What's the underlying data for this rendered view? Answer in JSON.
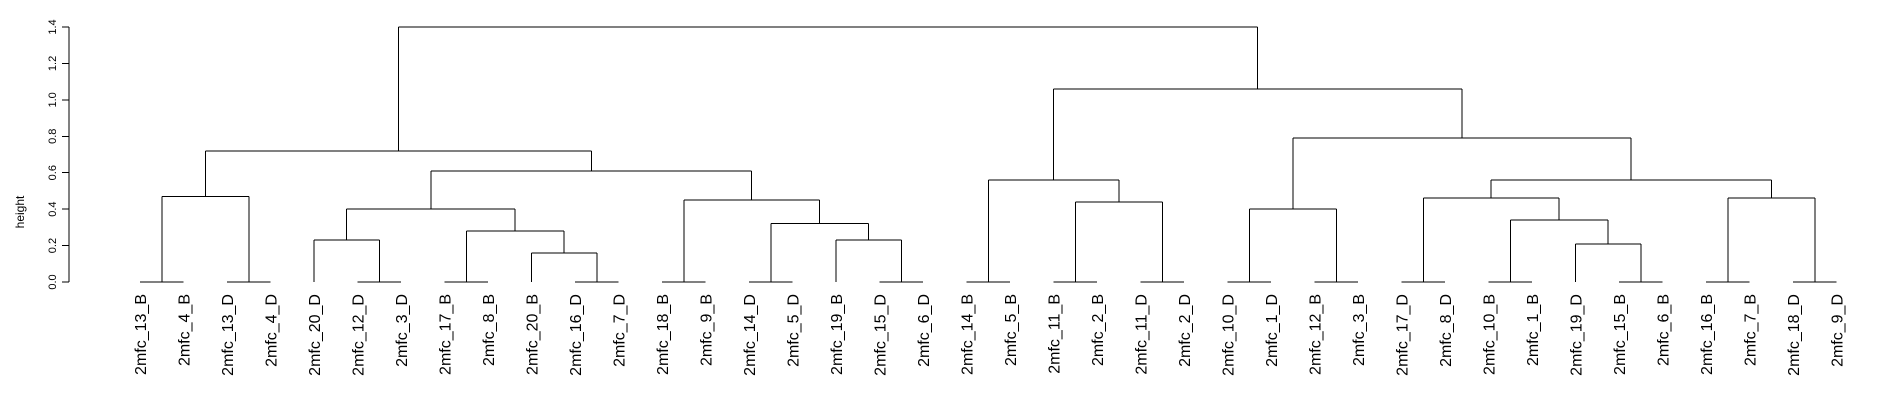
{
  "chart_data": {
    "type": "dendrogram",
    "title": "",
    "xlabel": "",
    "ylabel": "height",
    "ylim": [
      0,
      1.4
    ],
    "yticks": [
      "0.0",
      "0.2",
      "0.4",
      "0.6",
      "0.8",
      "1.0",
      "1.2",
      "1.4"
    ],
    "leaves": [
      "2mfc_13_B",
      "2mfc_4_B",
      "2mfc_13_D",
      "2mfc_4_D",
      "2mfc_20_D",
      "2mfc_12_D",
      "2mfc_3_D",
      "2mfc_17_B",
      "2mfc_8_B",
      "2mfc_20_B",
      "2mfc_16_D",
      "2mfc_7_D",
      "2mfc_18_B",
      "2mfc_9_B",
      "2mfc_14_D",
      "2mfc_5_D",
      "2mfc_19_B",
      "2mfc_15_D",
      "2mfc_6_D",
      "2mfc_14_B",
      "2mfc_5_B",
      "2mfc_11_B",
      "2mfc_2_B",
      "2mfc_11_D",
      "2mfc_2_D",
      "2mfc_10_D",
      "2mfc_1_D",
      "2mfc_12_B",
      "2mfc_3_B",
      "2mfc_17_D",
      "2mfc_8_D",
      "2mfc_10_B",
      "2mfc_1_B",
      "2mfc_19_D",
      "2mfc_15_B",
      "2mfc_6_B",
      "2mfc_16_B",
      "2mfc_7_B",
      "2mfc_18_D",
      "2mfc_9_D"
    ],
    "merges": [
      {
        "left": "L0",
        "right": "L1",
        "height": 0.0
      },
      {
        "left": "L2",
        "right": "L3",
        "height": 0.0
      },
      {
        "left": "M0",
        "right": "M1",
        "height": 0.47
      },
      {
        "left": "L5",
        "right": "L6",
        "height": 0.0
      },
      {
        "left": "L4",
        "right": "M3",
        "height": 0.23
      },
      {
        "left": "L7",
        "right": "L8",
        "height": 0.0
      },
      {
        "left": "L10",
        "right": "L11",
        "height": 0.0
      },
      {
        "left": "L9",
        "right": "M6",
        "height": 0.16
      },
      {
        "left": "M5",
        "right": "M7",
        "height": 0.28
      },
      {
        "left": "M4",
        "right": "M8",
        "height": 0.4
      },
      {
        "left": "L12",
        "right": "L13",
        "height": 0.0
      },
      {
        "left": "L14",
        "right": "L15",
        "height": 0.0
      },
      {
        "left": "L17",
        "right": "L18",
        "height": 0.0
      },
      {
        "left": "L16",
        "right": "M12",
        "height": 0.23
      },
      {
        "left": "M11",
        "right": "M13",
        "height": 0.32
      },
      {
        "left": "M10",
        "right": "M14",
        "height": 0.45
      },
      {
        "left": "M9",
        "right": "M15",
        "height": 0.61
      },
      {
        "left": "M2",
        "right": "M16",
        "height": 0.72
      },
      {
        "left": "L19",
        "right": "L20",
        "height": 0.0
      },
      {
        "left": "L21",
        "right": "L22",
        "height": 0.0
      },
      {
        "left": "L23",
        "right": "L24",
        "height": 0.0
      },
      {
        "left": "M19",
        "right": "M20",
        "height": 0.44
      },
      {
        "left": "M18",
        "right": "M21",
        "height": 0.56
      },
      {
        "left": "L25",
        "right": "L26",
        "height": 0.0
      },
      {
        "left": "L27",
        "right": "L28",
        "height": 0.0
      },
      {
        "left": "M23",
        "right": "M24",
        "height": 0.4
      },
      {
        "left": "L29",
        "right": "L30",
        "height": 0.0
      },
      {
        "left": "L31",
        "right": "L32",
        "height": 0.0
      },
      {
        "left": "L34",
        "right": "L35",
        "height": 0.0
      },
      {
        "left": "L33",
        "right": "M28",
        "height": 0.21
      },
      {
        "left": "M27",
        "right": "M29",
        "height": 0.34
      },
      {
        "left": "M26",
        "right": "M30",
        "height": 0.46
      },
      {
        "left": "L36",
        "right": "L37",
        "height": 0.0
      },
      {
        "left": "L38",
        "right": "L39",
        "height": 0.0
      },
      {
        "left": "M32",
        "right": "M33",
        "height": 0.46
      },
      {
        "left": "M31",
        "right": "M34",
        "height": 0.56
      },
      {
        "left": "M25",
        "right": "M35",
        "height": 0.79
      },
      {
        "left": "M22",
        "right": "M36",
        "height": 1.06
      },
      {
        "left": "M17",
        "right": "M37",
        "height": 1.4
      }
    ],
    "colors": {
      "line": "#000000",
      "background": "#ffffff"
    }
  }
}
